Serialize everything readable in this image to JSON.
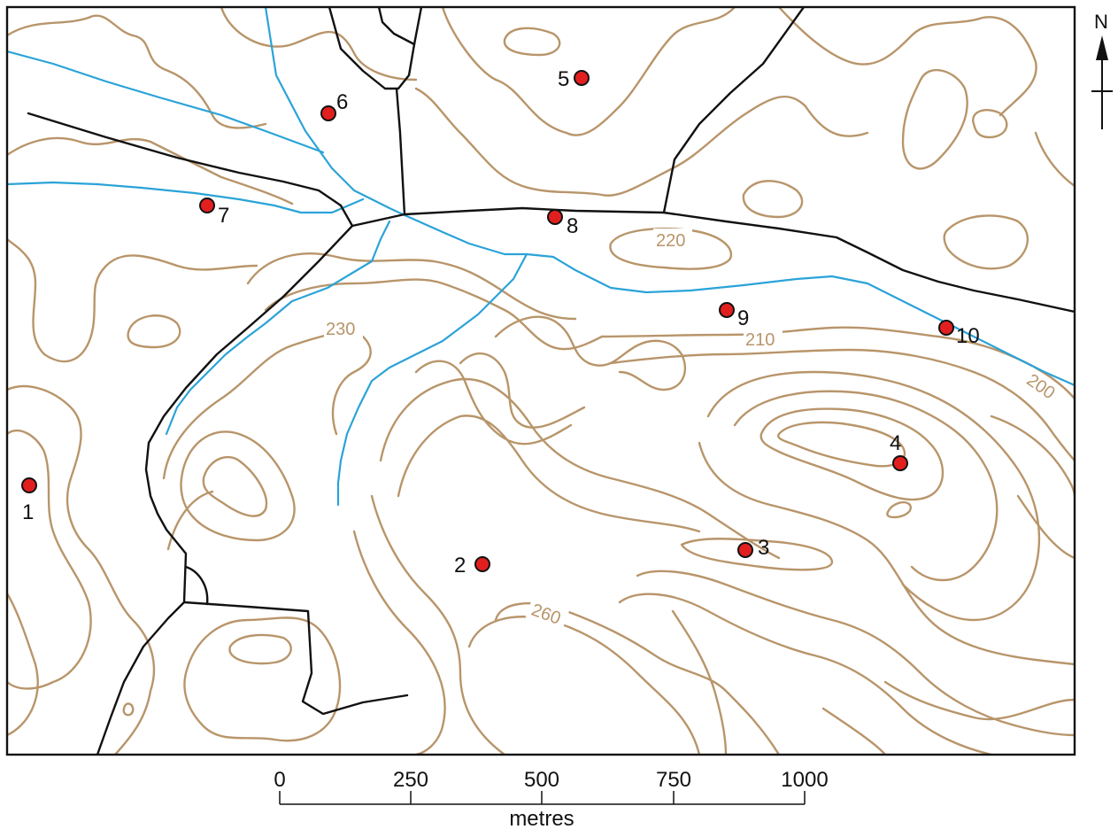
{
  "map": {
    "colors": {
      "contour": "#b8956a",
      "stream": "#2aa3d8",
      "road": "#111111",
      "marker_fill": "#e21f1f"
    },
    "sites": [
      "1",
      "2",
      "3",
      "4",
      "5",
      "6",
      "7",
      "8",
      "9",
      "10"
    ],
    "contour_labels": [
      "200",
      "210",
      "220",
      "230",
      "260"
    ],
    "north_arrow": {
      "label": "N",
      "icon": "north-arrow-icon"
    },
    "scale_bar": {
      "ticks": [
        "0",
        "250",
        "500",
        "750",
        "1000"
      ],
      "unit": "metres"
    }
  }
}
